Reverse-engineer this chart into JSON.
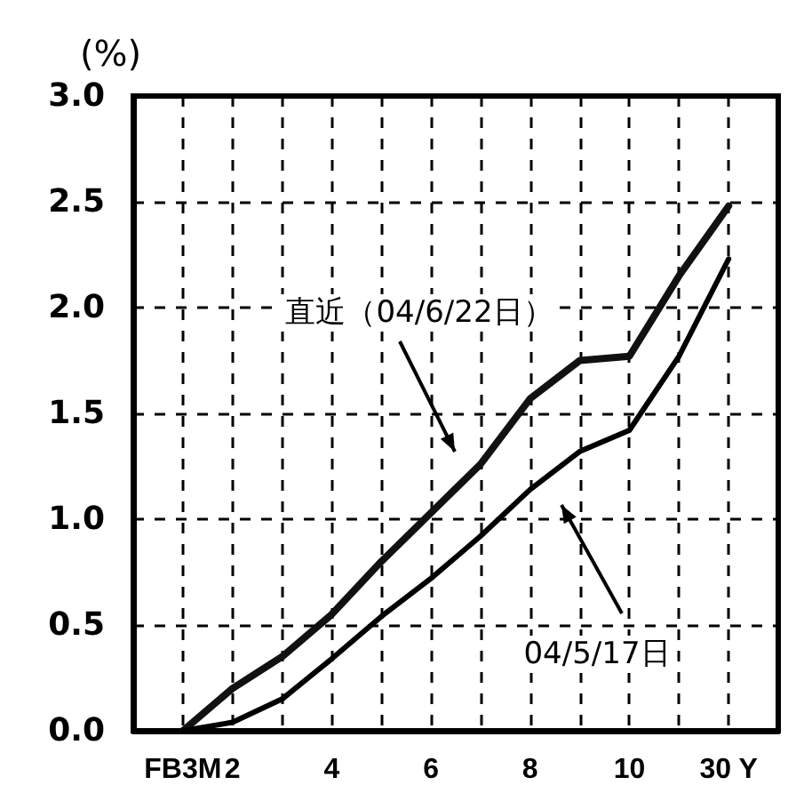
{
  "chart_data": {
    "type": "line",
    "ylabel": "(%)",
    "categories": [
      null,
      "FB3M",
      "2",
      null,
      "4",
      null,
      "6",
      null,
      "8",
      null,
      "10",
      null,
      "30 Y",
      null
    ],
    "series": [
      {
        "color": "#111111",
        "values": [
          null,
          0.0,
          0.2,
          0.35,
          0.55,
          0.8,
          1.03,
          1.26,
          1.57,
          1.75,
          1.77,
          2.15,
          2.48,
          null
        ]
      },
      {
        "color": "#000000",
        "values": [
          null,
          0.0,
          0.04,
          0.15,
          0.34,
          0.54,
          0.72,
          0.92,
          1.14,
          1.32,
          1.42,
          1.77,
          2.23,
          null
        ]
      }
    ],
    "ylim": [
      0,
      3
    ],
    "yticks": [
      {
        "value": 0,
        "label": "0.0"
      },
      {
        "value": 0.5,
        "label": "0.5"
      },
      {
        "value": 1,
        "label": "1.0"
      },
      {
        "value": 1.5,
        "label": "1.5"
      },
      {
        "value": 2,
        "label": "2.0"
      },
      {
        "value": 2.5,
        "label": "2.5"
      },
      {
        "value": 3,
        "label": "3.0"
      }
    ],
    "grid": true,
    "marker": "none",
    "line_style": "solid",
    "annotations": [
      "直近（04/6/22日）",
      "04/5/17日"
    ]
  }
}
